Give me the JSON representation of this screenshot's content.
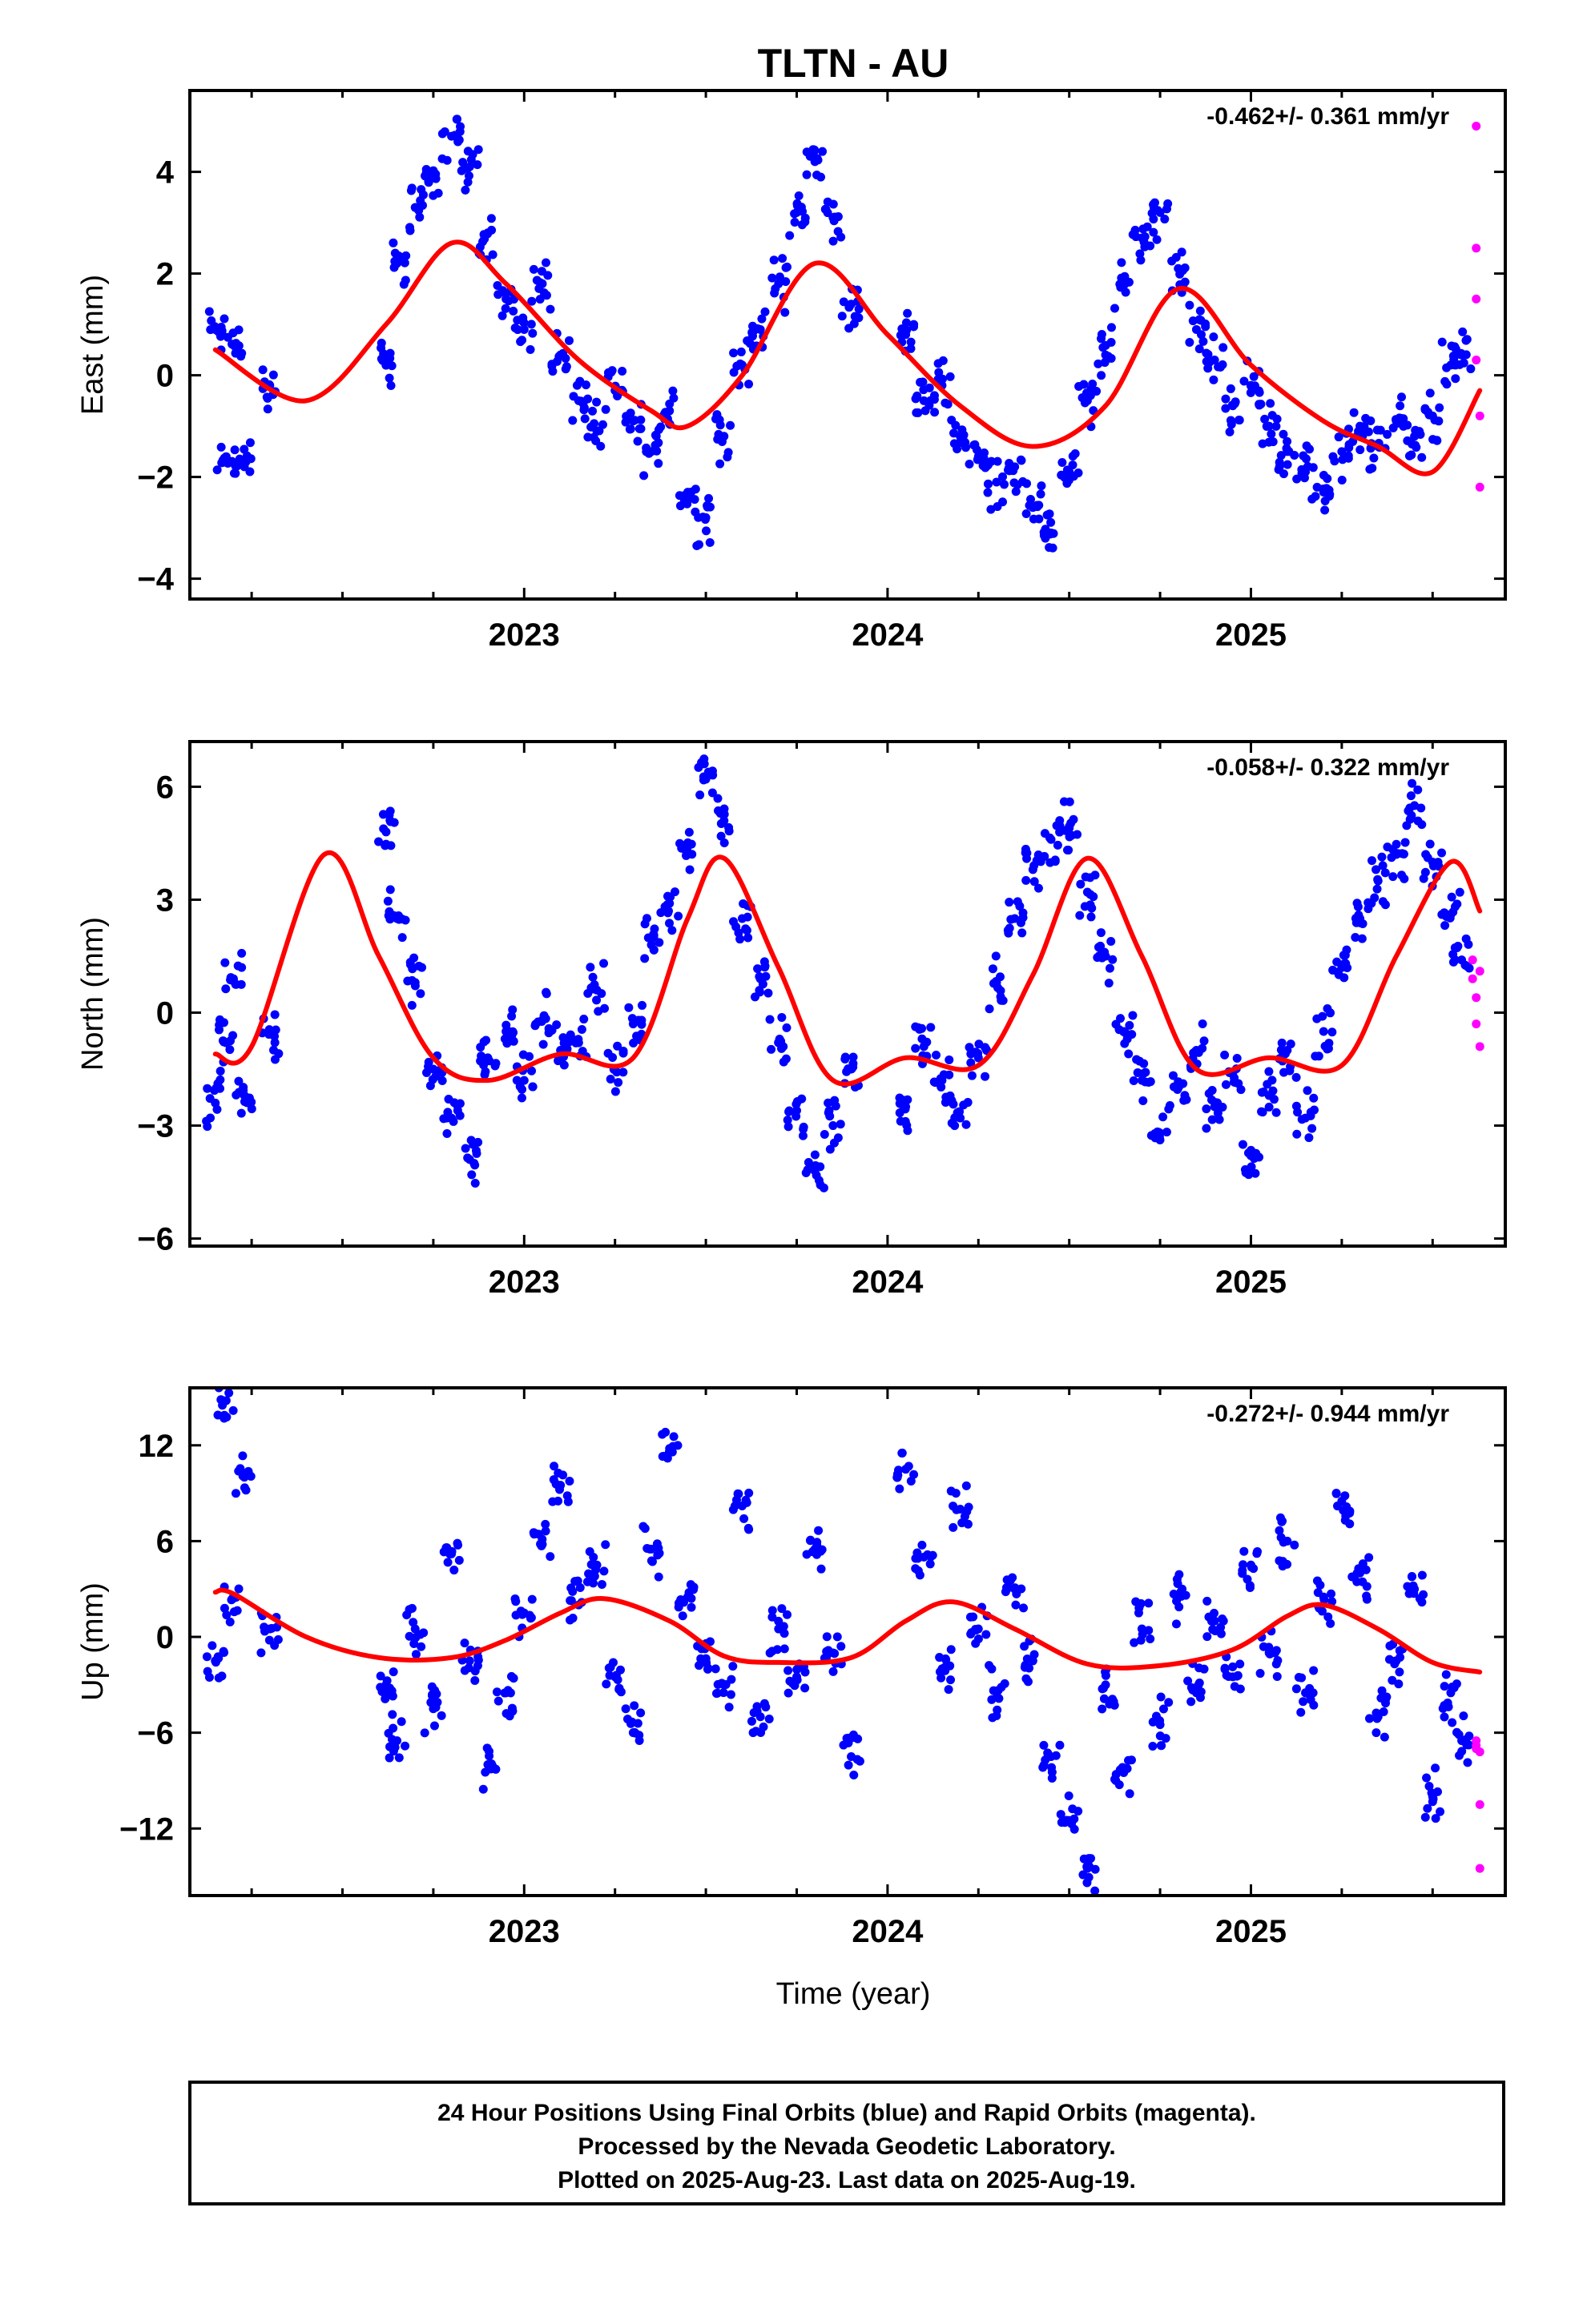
{
  "figure": {
    "title": "TLTN - AU",
    "x_axis_label": "Time (year)",
    "footer": [
      "24 Hour Positions Using Final Orbits (blue) and Rapid Orbits (magenta).",
      "Processed by the Nevada Geodetic Laboratory.",
      "Plotted on 2025-Aug-23. Last data on 2025-Aug-19."
    ]
  },
  "colors": {
    "final_orbits": "#0000ff",
    "rapid_orbits": "#ff00ff",
    "model_fit": "#ff0000",
    "axes": "#000000"
  },
  "chart_data": [
    {
      "type": "scatter",
      "ylabel": "East (mm)",
      "rate_text": "-0.462+/- 0.361 mm/yr",
      "xlim": [
        2022.08,
        2025.7
      ],
      "ylim": [
        -4.4,
        5.6
      ],
      "xticks": [
        2023,
        2024,
        2025
      ],
      "xtick_labels": [
        "2023",
        "2024",
        "2025"
      ],
      "yticks": [
        -4,
        -2,
        0,
        2,
        4
      ],
      "ytick_labels": [
        "−4",
        "−2",
        "0",
        "2",
        "4"
      ],
      "series": [
        {
          "role": "final",
          "x": [
            2022.15,
            2022.18,
            2022.2,
            2022.23,
            2022.3,
            2022.62,
            2022.65,
            2022.7,
            2022.75,
            2022.8,
            2022.85,
            2022.9,
            2022.95,
            2023.0,
            2023.05,
            2023.1,
            2023.15,
            2023.2,
            2023.25,
            2023.3,
            2023.35,
            2023.4,
            2023.45,
            2023.5,
            2023.55,
            2023.6,
            2023.65,
            2023.7,
            2023.75,
            2023.8,
            2023.85,
            2023.9,
            2024.05,
            2024.1,
            2024.15,
            2024.2,
            2024.25,
            2024.3,
            2024.35,
            2024.4,
            2024.45,
            2024.5,
            2024.55,
            2024.6,
            2024.65,
            2024.7,
            2024.75,
            2024.8,
            2024.85,
            2024.9,
            2024.95,
            2025.0,
            2025.05,
            2025.1,
            2025.15,
            2025.2,
            2025.25,
            2025.3,
            2025.35,
            2025.4,
            2025.45,
            2025.5,
            2025.55,
            2025.58
          ],
          "y": [
            0.9,
            -1.6,
            0.6,
            -1.8,
            -0.2,
            0.3,
            2.2,
            3.3,
            3.9,
            4.7,
            4.1,
            2.8,
            1.5,
            0.9,
            1.8,
            0.4,
            -0.5,
            -1.1,
            -0.3,
            -0.9,
            -1.5,
            -0.7,
            -2.3,
            -2.8,
            -1.2,
            0.2,
            0.9,
            1.8,
            3.2,
            4.2,
            3.1,
            1.4,
            0.8,
            -0.5,
            -0.2,
            -1.2,
            -1.6,
            -2.1,
            -1.8,
            -2.6,
            -3.1,
            -1.9,
            -0.5,
            0.4,
            1.8,
            2.7,
            3.2,
            2.1,
            0.9,
            0.3,
            -0.6,
            -0.2,
            -1.0,
            -1.5,
            -1.9,
            -2.3,
            -1.5,
            -1.0,
            -1.4,
            -0.9,
            -1.2,
            -0.8,
            0.2,
            0.4
          ]
        },
        {
          "role": "rapid",
          "x": [
            2025.62,
            2025.62,
            2025.62,
            2025.62,
            2025.63,
            2025.63
          ],
          "y": [
            4.9,
            2.5,
            1.5,
            0.3,
            -0.8,
            -2.2
          ]
        },
        {
          "role": "model",
          "x": [
            2022.15,
            2022.4,
            2022.62,
            2022.8,
            2022.95,
            2023.15,
            2023.35,
            2023.45,
            2023.6,
            2023.8,
            2024.0,
            2024.2,
            2024.4,
            2024.6,
            2024.8,
            2025.0,
            2025.2,
            2025.35,
            2025.5,
            2025.63
          ],
          "y": [
            0.5,
            -0.5,
            1.0,
            2.6,
            1.8,
            0.3,
            -0.7,
            -1.0,
            0.0,
            2.2,
            0.8,
            -0.6,
            -1.4,
            -0.6,
            1.7,
            0.2,
            -0.9,
            -1.4,
            -1.9,
            -0.3
          ]
        }
      ]
    },
    {
      "type": "scatter",
      "ylabel": "North (mm)",
      "rate_text": "-0.058+/- 0.322 mm/yr",
      "xlim": [
        2022.08,
        2025.7
      ],
      "ylim": [
        -6.2,
        7.2
      ],
      "xticks": [
        2023,
        2024,
        2025
      ],
      "xtick_labels": [
        "2023",
        "2024",
        "2025"
      ],
      "yticks": [
        -6,
        -3,
        0,
        3,
        6
      ],
      "ytick_labels": [
        "−6",
        "−3",
        "0",
        "3",
        "6"
      ],
      "series": [
        {
          "role": "final",
          "x": [
            2022.15,
            2022.18,
            2022.2,
            2022.23,
            2022.3,
            2022.62,
            2022.65,
            2022.7,
            2022.75,
            2022.8,
            2022.85,
            2022.9,
            2022.95,
            2023.0,
            2023.05,
            2023.1,
            2023.15,
            2023.2,
            2023.25,
            2023.3,
            2023.35,
            2023.4,
            2023.45,
            2023.5,
            2023.55,
            2023.6,
            2023.65,
            2023.7,
            2023.75,
            2023.8,
            2023.85,
            2023.9,
            2024.05,
            2024.1,
            2024.15,
            2024.2,
            2024.25,
            2024.3,
            2024.35,
            2024.4,
            2024.45,
            2024.5,
            2024.55,
            2024.6,
            2024.65,
            2024.7,
            2024.75,
            2024.8,
            2024.85,
            2024.9,
            2024.95,
            2025.0,
            2025.05,
            2025.1,
            2025.15,
            2025.2,
            2025.25,
            2025.3,
            2025.35,
            2025.4,
            2025.45,
            2025.5,
            2025.55,
            2025.58
          ],
          "y": [
            -2.4,
            -0.8,
            0.9,
            -2.2,
            -0.5,
            4.8,
            2.5,
            0.8,
            -1.5,
            -2.8,
            -3.9,
            -1.2,
            -0.5,
            -1.8,
            -0.2,
            -1.0,
            -0.8,
            0.6,
            -1.5,
            -0.3,
            1.8,
            2.9,
            4.5,
            6.2,
            5.1,
            2.5,
            0.9,
            -0.8,
            -2.6,
            -4.2,
            -3.0,
            -1.5,
            -2.5,
            -0.9,
            -1.8,
            -2.8,
            -1.2,
            0.8,
            2.5,
            3.8,
            4.6,
            4.9,
            3.2,
            1.5,
            -0.5,
            -1.8,
            -3.2,
            -2.0,
            -1.0,
            -2.5,
            -1.6,
            -3.8,
            -2.2,
            -1.0,
            -2.8,
            -0.5,
            1.2,
            2.5,
            3.5,
            4.2,
            5.5,
            4.0,
            2.6,
            1.4
          ]
        },
        {
          "role": "rapid",
          "x": [
            2025.61,
            2025.61,
            2025.62,
            2025.62,
            2025.63,
            2025.63
          ],
          "y": [
            1.4,
            0.9,
            0.4,
            -0.3,
            -0.9,
            1.1
          ]
        },
        {
          "role": "model",
          "x": [
            2022.15,
            2022.25,
            2022.45,
            2022.6,
            2022.75,
            2022.9,
            2023.1,
            2023.3,
            2023.45,
            2023.55,
            2023.7,
            2023.85,
            2024.05,
            2024.25,
            2024.4,
            2024.55,
            2024.7,
            2024.85,
            2025.05,
            2025.25,
            2025.4,
            2025.55,
            2025.63
          ],
          "y": [
            -1.1,
            -0.9,
            4.2,
            1.5,
            -1.2,
            -1.8,
            -1.1,
            -1.2,
            2.5,
            4.1,
            1.2,
            -1.8,
            -1.2,
            -1.4,
            1.0,
            4.1,
            1.5,
            -1.5,
            -1.2,
            -1.4,
            1.5,
            4.0,
            2.7
          ]
        }
      ]
    },
    {
      "type": "scatter",
      "ylabel": "Up (mm)",
      "rate_text": "-0.272+/- 0.944 mm/yr",
      "xlim": [
        2022.08,
        2025.7
      ],
      "ylim": [
        -16.2,
        15.6
      ],
      "xticks": [
        2023,
        2024,
        2025
      ],
      "xtick_labels": [
        "2023",
        "2024",
        "2025"
      ],
      "yticks": [
        -12,
        -6,
        0,
        6,
        12
      ],
      "ytick_labels": [
        "−12",
        "−6",
        "0",
        "6",
        "12"
      ],
      "series": [
        {
          "role": "final",
          "x": [
            2022.15,
            2022.18,
            2022.2,
            2022.23,
            2022.3,
            2022.62,
            2022.65,
            2022.7,
            2022.75,
            2022.8,
            2022.85,
            2022.9,
            2022.95,
            2023.0,
            2023.05,
            2023.1,
            2023.15,
            2023.2,
            2023.25,
            2023.3,
            2023.35,
            2023.4,
            2023.45,
            2023.5,
            2023.55,
            2023.6,
            2023.65,
            2023.7,
            2023.75,
            2023.8,
            2023.85,
            2023.9,
            2024.05,
            2024.1,
            2024.15,
            2024.2,
            2024.25,
            2024.3,
            2024.35,
            2024.4,
            2024.45,
            2024.5,
            2024.55,
            2024.6,
            2024.65,
            2024.7,
            2024.75,
            2024.8,
            2024.85,
            2024.9,
            2024.95,
            2025.0,
            2025.05,
            2025.1,
            2025.15,
            2025.2,
            2025.25,
            2025.3,
            2025.35,
            2025.4,
            2025.45,
            2025.5,
            2025.55,
            2025.58
          ],
          "y": [
            -1.5,
            14.8,
            2.5,
            10.0,
            0.5,
            -3.0,
            -6.5,
            0.5,
            -4.5,
            5.2,
            -1.5,
            -8.0,
            -3.5,
            1.5,
            5.8,
            9.5,
            2.0,
            4.5,
            -2.5,
            -6.0,
            5.5,
            11.8,
            2.5,
            -1.5,
            -3.0,
            8.2,
            -5.0,
            0.5,
            -2.5,
            5.5,
            -1.0,
            -7.5,
            10.5,
            5.0,
            -2.0,
            8.0,
            0.5,
            -3.5,
            3.0,
            -1.5,
            -7.5,
            -11.5,
            -14.5,
            -3.0,
            -8.5,
            0.5,
            -5.5,
            2.5,
            -3.5,
            1.0,
            -2.5,
            4.5,
            -1.0,
            6.0,
            -3.5,
            2.5,
            8.5,
            4.0,
            -5.0,
            -1.5,
            3.0,
            -10.0,
            -3.5,
            -6.5
          ]
        },
        {
          "role": "rapid",
          "x": [
            2025.62,
            2025.62,
            2025.62,
            2025.63,
            2025.63,
            2025.63
          ],
          "y": [
            -6.5,
            -7.0,
            -6.8,
            -7.2,
            -10.5,
            -14.5
          ]
        },
        {
          "role": "model",
          "x": [
            2022.15,
            2022.2,
            2022.4,
            2022.6,
            2022.8,
            2022.95,
            2023.1,
            2023.22,
            2023.4,
            2023.55,
            2023.7,
            2023.9,
            2024.05,
            2024.18,
            2024.35,
            2024.55,
            2024.75,
            2024.95,
            2025.1,
            2025.2,
            2025.35,
            2025.5,
            2025.63
          ],
          "y": [
            2.8,
            2.7,
            0.0,
            -1.3,
            -1.3,
            -0.2,
            1.5,
            2.4,
            1.0,
            -1.2,
            -1.6,
            -1.3,
            1.0,
            2.2,
            0.5,
            -1.7,
            -1.8,
            -0.8,
            1.3,
            2.0,
            0.5,
            -1.6,
            -2.2
          ]
        }
      ]
    }
  ]
}
